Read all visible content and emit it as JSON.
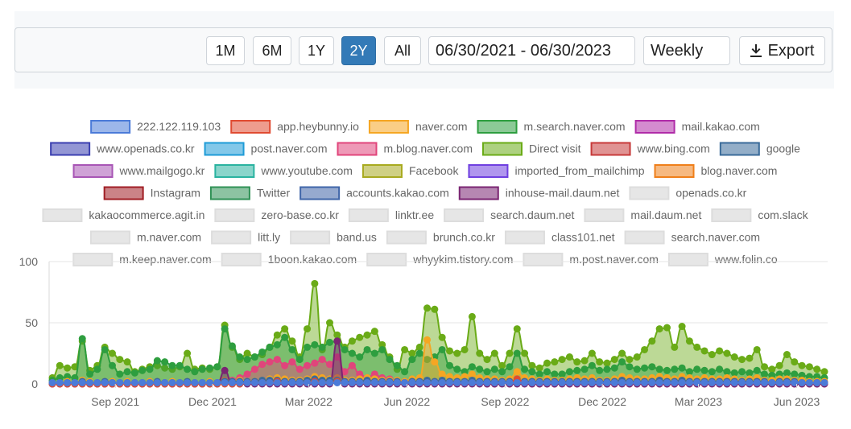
{
  "toolbar": {
    "ranges": [
      {
        "label": "1M",
        "active": false
      },
      {
        "label": "6M",
        "active": false
      },
      {
        "label": "1Y",
        "active": false
      },
      {
        "label": "2Y",
        "active": true
      },
      {
        "label": "All",
        "active": false
      }
    ],
    "date_range": "06/30/2021 - 06/30/2023",
    "interval": "Weekly",
    "export_label": "Export",
    "export_icon": "download-icon",
    "accent": "#337ab7"
  },
  "chart_data": {
    "type": "area",
    "x_start": "2021-07-01",
    "x_end": "2023-06-30",
    "xtick_labels": [
      "Sep 2021",
      "Dec 2021",
      "Mar 2022",
      "Jun 2022",
      "Sep 2022",
      "Dec 2022",
      "Mar 2023",
      "Jun 2023"
    ],
    "ylim": [
      0,
      100
    ],
    "yticks": [
      0,
      50,
      100
    ],
    "grid": true,
    "legend_position": "top",
    "legend": [
      {
        "name": "222.122.119.103",
        "color": "#4b7bd8",
        "visible": true
      },
      {
        "name": "app.heybunny.io",
        "color": "#e04b32",
        "visible": true
      },
      {
        "name": "naver.com",
        "color": "#f5a623",
        "visible": true
      },
      {
        "name": "m.search.naver.com",
        "color": "#2e9e3f",
        "visible": true
      },
      {
        "name": "mail.kakao.com",
        "color": "#b02ca8",
        "visible": true
      },
      {
        "name": "www.openads.co.kr",
        "color": "#3b3fb0",
        "visible": true
      },
      {
        "name": "post.naver.com",
        "color": "#1e9bd7",
        "visible": true
      },
      {
        "name": "m.blog.naver.com",
        "color": "#e0457b",
        "visible": true
      },
      {
        "name": "Direct visit",
        "color": "#6aab17",
        "visible": true
      },
      {
        "name": "www.bing.com",
        "color": "#c73a3a",
        "visible": true
      },
      {
        "name": "google",
        "color": "#3a6b9a",
        "visible": true
      },
      {
        "name": "www.mailgogo.kr",
        "color": "#a855b5",
        "visible": true
      },
      {
        "name": "www.youtube.com",
        "color": "#2ab3a0",
        "visible": true
      },
      {
        "name": "Facebook",
        "color": "#a8aa1f",
        "visible": true
      },
      {
        "name": "imported_from_mailchimp",
        "color": "#6f3fe0",
        "visible": true
      },
      {
        "name": "blog.naver.com",
        "color": "#ef7f1a",
        "visible": true
      },
      {
        "name": "Instagram",
        "color": "#a01e24",
        "visible": true
      },
      {
        "name": "Twitter",
        "color": "#2f9155",
        "visible": true
      },
      {
        "name": "accounts.kakao.com",
        "color": "#3f65a8",
        "visible": true
      },
      {
        "name": "inhouse-mail.daum.net",
        "color": "#7a2472",
        "visible": true
      },
      {
        "name": "openads.co.kr",
        "color": "#cccccc",
        "visible": false
      },
      {
        "name": "kakaocommerce.agit.in",
        "color": "#cccccc",
        "visible": false
      },
      {
        "name": "zero-base.co.kr",
        "color": "#cccccc",
        "visible": false
      },
      {
        "name": "linktr.ee",
        "color": "#cccccc",
        "visible": false
      },
      {
        "name": "search.daum.net",
        "color": "#cccccc",
        "visible": false
      },
      {
        "name": "mail.daum.net",
        "color": "#cccccc",
        "visible": false
      },
      {
        "name": "com.slack",
        "color": "#cccccc",
        "visible": false
      },
      {
        "name": "m.naver.com",
        "color": "#cccccc",
        "visible": false
      },
      {
        "name": "litt.ly",
        "color": "#cccccc",
        "visible": false
      },
      {
        "name": "band.us",
        "color": "#cccccc",
        "visible": false
      },
      {
        "name": "brunch.co.kr",
        "color": "#cccccc",
        "visible": false
      },
      {
        "name": "class101.net",
        "color": "#cccccc",
        "visible": false
      },
      {
        "name": "search.naver.com",
        "color": "#cccccc",
        "visible": false
      },
      {
        "name": "m.keep.naver.com",
        "color": "#cccccc",
        "visible": false
      },
      {
        "name": "1boon.kakao.com",
        "color": "#cccccc",
        "visible": false
      },
      {
        "name": "whyykim.tistory.com",
        "color": "#cccccc",
        "visible": false
      },
      {
        "name": "m.post.naver.com",
        "color": "#cccccc",
        "visible": false
      },
      {
        "name": "www.folin.co",
        "color": "#cccccc",
        "visible": false
      }
    ],
    "series": [
      {
        "name": "Direct visit",
        "color": "#6aab17",
        "values": [
          5,
          15,
          13,
          14,
          35,
          11,
          15,
          30,
          25,
          20,
          18,
          10,
          12,
          14,
          15,
          13,
          12,
          14,
          25,
          12,
          13,
          12,
          14,
          48,
          30,
          20,
          25,
          22,
          24,
          30,
          40,
          45,
          35,
          22,
          45,
          82,
          28,
          50,
          40,
          30,
          35,
          38,
          40,
          43,
          32,
          22,
          12,
          28,
          25,
          30,
          62,
          61,
          38,
          27,
          25,
          28,
          55,
          25,
          20,
          25,
          15,
          25,
          45,
          25,
          15,
          13,
          17,
          18,
          20,
          22,
          18,
          19,
          25,
          18,
          17,
          20,
          25,
          20,
          22,
          28,
          35,
          45,
          46,
          30,
          47,
          35,
          30,
          27,
          24,
          27,
          25,
          22,
          20,
          21,
          28,
          14,
          12,
          15,
          24,
          18,
          15,
          14,
          12,
          10
        ]
      },
      {
        "name": "m.search.naver.com",
        "color": "#2e9e3f",
        "values": [
          3,
          5,
          6,
          5,
          37,
          8,
          12,
          28,
          15,
          8,
          10,
          9,
          11,
          12,
          19,
          18,
          15,
          15,
          12,
          10,
          12,
          13,
          14,
          45,
          31,
          22,
          20,
          22,
          26,
          30,
          32,
          38,
          28,
          20,
          30,
          32,
          30,
          34,
          35,
          28,
          25,
          22,
          28,
          25,
          28,
          20,
          15,
          10,
          20,
          25,
          20,
          22,
          28,
          15,
          12,
          10,
          14,
          12,
          10,
          12,
          10,
          14,
          25,
          12,
          10,
          8,
          10,
          8,
          8,
          10,
          11,
          12,
          15,
          11,
          12,
          13,
          18,
          14,
          12,
          13,
          14,
          12,
          11,
          12,
          13,
          10,
          12,
          11,
          10,
          12,
          10,
          9,
          10,
          9,
          11,
          8,
          7,
          8,
          9,
          8,
          7,
          6,
          6,
          5
        ]
      },
      {
        "name": "m.blog.naver.com",
        "color": "#e0457b",
        "values": [
          0,
          0,
          0,
          0,
          1,
          0,
          0,
          1,
          0,
          0,
          0,
          0,
          0,
          0,
          1,
          1,
          0,
          1,
          1,
          0,
          0,
          1,
          1,
          2,
          3,
          5,
          8,
          12,
          16,
          18,
          20,
          15,
          18,
          12,
          15,
          17,
          20,
          16,
          22,
          10,
          15,
          8,
          5,
          8,
          5,
          4,
          3,
          2,
          2,
          2,
          1,
          2,
          2,
          1,
          1,
          1,
          1,
          1,
          0,
          0,
          1,
          0,
          1,
          1,
          0,
          0,
          0,
          0,
          1,
          0,
          0,
          1,
          0,
          0,
          0,
          0,
          1,
          0,
          0,
          0,
          1,
          0,
          0,
          0,
          1,
          0,
          0,
          0,
          1,
          0,
          0,
          0,
          0,
          1,
          0,
          0,
          0,
          0,
          0,
          0,
          0,
          0,
          0,
          0
        ]
      },
      {
        "name": "naver.com",
        "color": "#f5a623",
        "values": [
          1,
          1,
          2,
          1,
          3,
          2,
          1,
          2,
          2,
          1,
          2,
          1,
          1,
          2,
          2,
          1,
          2,
          1,
          2,
          1,
          1,
          2,
          1,
          3,
          2,
          3,
          2,
          2,
          3,
          4,
          5,
          4,
          3,
          3,
          4,
          6,
          5,
          4,
          5,
          3,
          3,
          4,
          5,
          4,
          3,
          3,
          3,
          2,
          4,
          5,
          36,
          18,
          8,
          6,
          5,
          6,
          8,
          5,
          4,
          4,
          3,
          4,
          10,
          5,
          4,
          3,
          4,
          3,
          3,
          4,
          5,
          4,
          5,
          3,
          3,
          4,
          6,
          5,
          4,
          4,
          5,
          6,
          5,
          4,
          6,
          5,
          4,
          5,
          4,
          4,
          5,
          4,
          3,
          4,
          5,
          3,
          3,
          4,
          4,
          3,
          3,
          2,
          2,
          2
        ]
      },
      {
        "name": "inhouse-mail.daum.net",
        "color": "#7a2472",
        "values": [
          0,
          0,
          0,
          0,
          0,
          0,
          0,
          0,
          0,
          0,
          0,
          0,
          0,
          0,
          0,
          0,
          0,
          0,
          0,
          0,
          0,
          0,
          0,
          11,
          0,
          0,
          0,
          0,
          0,
          0,
          0,
          0,
          0,
          0,
          0,
          0,
          0,
          0,
          35,
          0,
          0,
          0,
          0,
          0,
          0,
          0,
          0,
          0,
          0,
          0,
          0,
          0,
          0,
          0,
          0,
          0,
          0,
          0,
          0,
          0,
          0,
          0,
          0,
          0,
          0,
          0,
          0,
          0,
          0,
          0,
          0,
          0,
          0,
          0,
          0,
          0,
          0,
          0,
          0,
          0,
          0,
          0,
          0,
          0,
          0,
          0,
          0,
          0,
          0,
          0,
          0,
          0,
          0,
          0,
          0,
          0,
          0,
          0,
          0,
          0,
          0,
          0,
          0,
          0
        ]
      },
      {
        "name": "google",
        "color": "#3a6b9a",
        "values": [
          1,
          1,
          1,
          1,
          2,
          1,
          1,
          2,
          1,
          1,
          1,
          1,
          1,
          1,
          2,
          1,
          1,
          1,
          2,
          1,
          1,
          1,
          1,
          2,
          2,
          2,
          2,
          2,
          3,
          3,
          3,
          2,
          2,
          2,
          3,
          4,
          3,
          3,
          3,
          2,
          2,
          2,
          3,
          2,
          2,
          2,
          2,
          1,
          2,
          2,
          3,
          2,
          3,
          2,
          2,
          2,
          3,
          2,
          2,
          2,
          2,
          2,
          3,
          2,
          2,
          2,
          2,
          2,
          2,
          2,
          2,
          2,
          2,
          2,
          2,
          2,
          3,
          2,
          2,
          2,
          2,
          3,
          2,
          2,
          3,
          2,
          2,
          2,
          2,
          2,
          2,
          2,
          2,
          2,
          2,
          2,
          1,
          2,
          2,
          2,
          1,
          1,
          1,
          1
        ]
      },
      {
        "name": "app.heybunny.io",
        "color": "#e04b32",
        "values": [
          0,
          0,
          0,
          0,
          0,
          0,
          0,
          0,
          0,
          0,
          0,
          0,
          0,
          0,
          0,
          0,
          0,
          0,
          0,
          0,
          0,
          0,
          0,
          0,
          0,
          0,
          1,
          1,
          1,
          1,
          2,
          1,
          1,
          1,
          1,
          2,
          1,
          1,
          2,
          1,
          1,
          1,
          1,
          1,
          1,
          1,
          1,
          1,
          1,
          1,
          1,
          1,
          1,
          1,
          1,
          1,
          1,
          1,
          1,
          1,
          1,
          1,
          4,
          1,
          1,
          1,
          1,
          1,
          1,
          1,
          1,
          1,
          1,
          1,
          1,
          1,
          1,
          1,
          1,
          1,
          1,
          1,
          1,
          1,
          1,
          1,
          1,
          1,
          1,
          1,
          1,
          1,
          1,
          1,
          1,
          1,
          1,
          1,
          1,
          1,
          1,
          1,
          1,
          1
        ]
      },
      {
        "name": "222.122.119.103",
        "color": "#4b7bd8",
        "values": [
          1,
          1,
          1,
          1,
          1,
          1,
          1,
          1,
          1,
          1,
          1,
          1,
          1,
          1,
          1,
          1,
          1,
          1,
          1,
          1,
          1,
          1,
          1,
          1,
          1,
          1,
          1,
          1,
          1,
          1,
          1,
          1,
          1,
          1,
          1,
          1,
          1,
          1,
          1,
          1,
          1,
          1,
          1,
          1,
          1,
          1,
          1,
          1,
          1,
          1,
          1,
          1,
          1,
          1,
          1,
          1,
          1,
          1,
          1,
          1,
          1,
          1,
          1,
          1,
          1,
          1,
          1,
          1,
          1,
          1,
          1,
          1,
          1,
          1,
          1,
          1,
          1,
          1,
          1,
          1,
          1,
          1,
          1,
          1,
          1,
          1,
          1,
          1,
          1,
          1,
          1,
          1,
          1,
          1,
          1,
          1,
          1,
          1,
          1,
          1,
          1,
          1,
          1,
          1
        ]
      }
    ]
  }
}
